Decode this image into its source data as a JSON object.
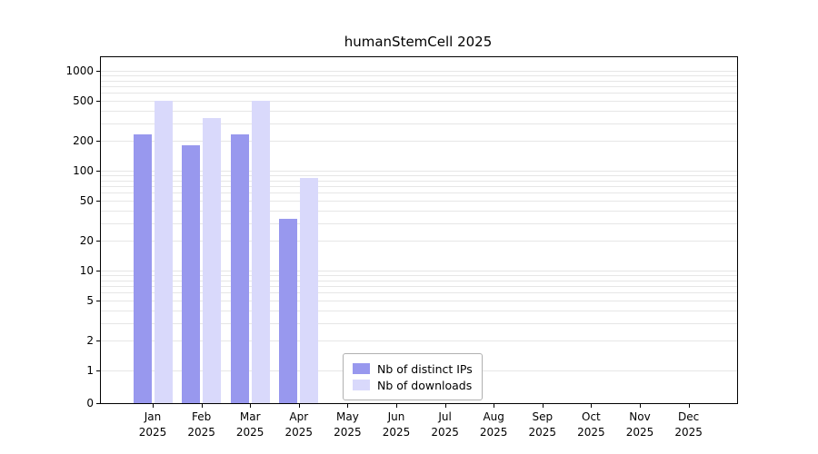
{
  "page": {
    "background": "#ffffff"
  },
  "chart_data": {
    "type": "bar",
    "title": "humanStemCell 2025",
    "categories": [
      "Jan",
      "Feb",
      "Mar",
      "Apr",
      "May",
      "Jun",
      "Jul",
      "Aug",
      "Sep",
      "Oct",
      "Nov",
      "Dec"
    ],
    "category_year": "2025",
    "series": [
      {
        "name": "Nb of distinct IPs",
        "color": "#9898ee",
        "values": [
          230,
          180,
          230,
          33,
          0,
          0,
          0,
          0,
          0,
          0,
          0,
          0
        ]
      },
      {
        "name": "Nb of downloads",
        "color": "#d9d9fb",
        "values": [
          500,
          340,
          500,
          85,
          0,
          0,
          0,
          0,
          0,
          0,
          0,
          0
        ]
      }
    ],
    "y_axis": {
      "scale": "log with 0 baseline",
      "ticks": [
        0,
        1,
        2,
        5,
        10,
        20,
        50,
        100,
        200,
        500,
        1000
      ],
      "ylim": [
        0,
        1000
      ]
    },
    "xlabel": "",
    "ylabel": "",
    "grid": "horizontal log minor gridlines",
    "legend": {
      "position": "inside bottom-center"
    }
  }
}
